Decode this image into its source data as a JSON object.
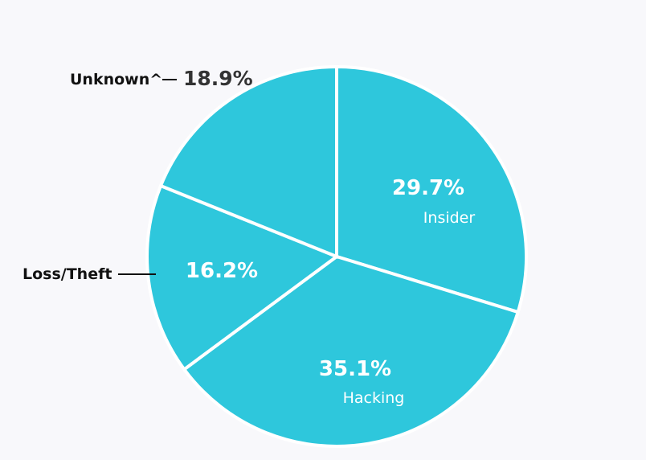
{
  "chart_data": {
    "type": "pie",
    "slices": [
      {
        "label": "Insider",
        "value": 29.7,
        "pct_text": "29.7%",
        "label_position": "inside",
        "color": "#2ec7dc"
      },
      {
        "label": "Hacking",
        "value": 35.1,
        "pct_text": "35.1%",
        "label_position": "inside",
        "color": "#2ec7dc"
      },
      {
        "label": "Loss/Theft",
        "value": 16.2,
        "pct_text": "16.2%",
        "label_position": "outside-left",
        "color": "#2ec7dc"
      },
      {
        "label": "Unknown^",
        "value": 18.9,
        "pct_text": "18.9%",
        "label_position": "outside-top-left",
        "color": "#2ec7dc"
      }
    ],
    "start_angle": "12 o'clock",
    "direction": "clockwise",
    "legend": "none",
    "separator_color": "#ffffff",
    "background_color": "#f8f8fb"
  }
}
